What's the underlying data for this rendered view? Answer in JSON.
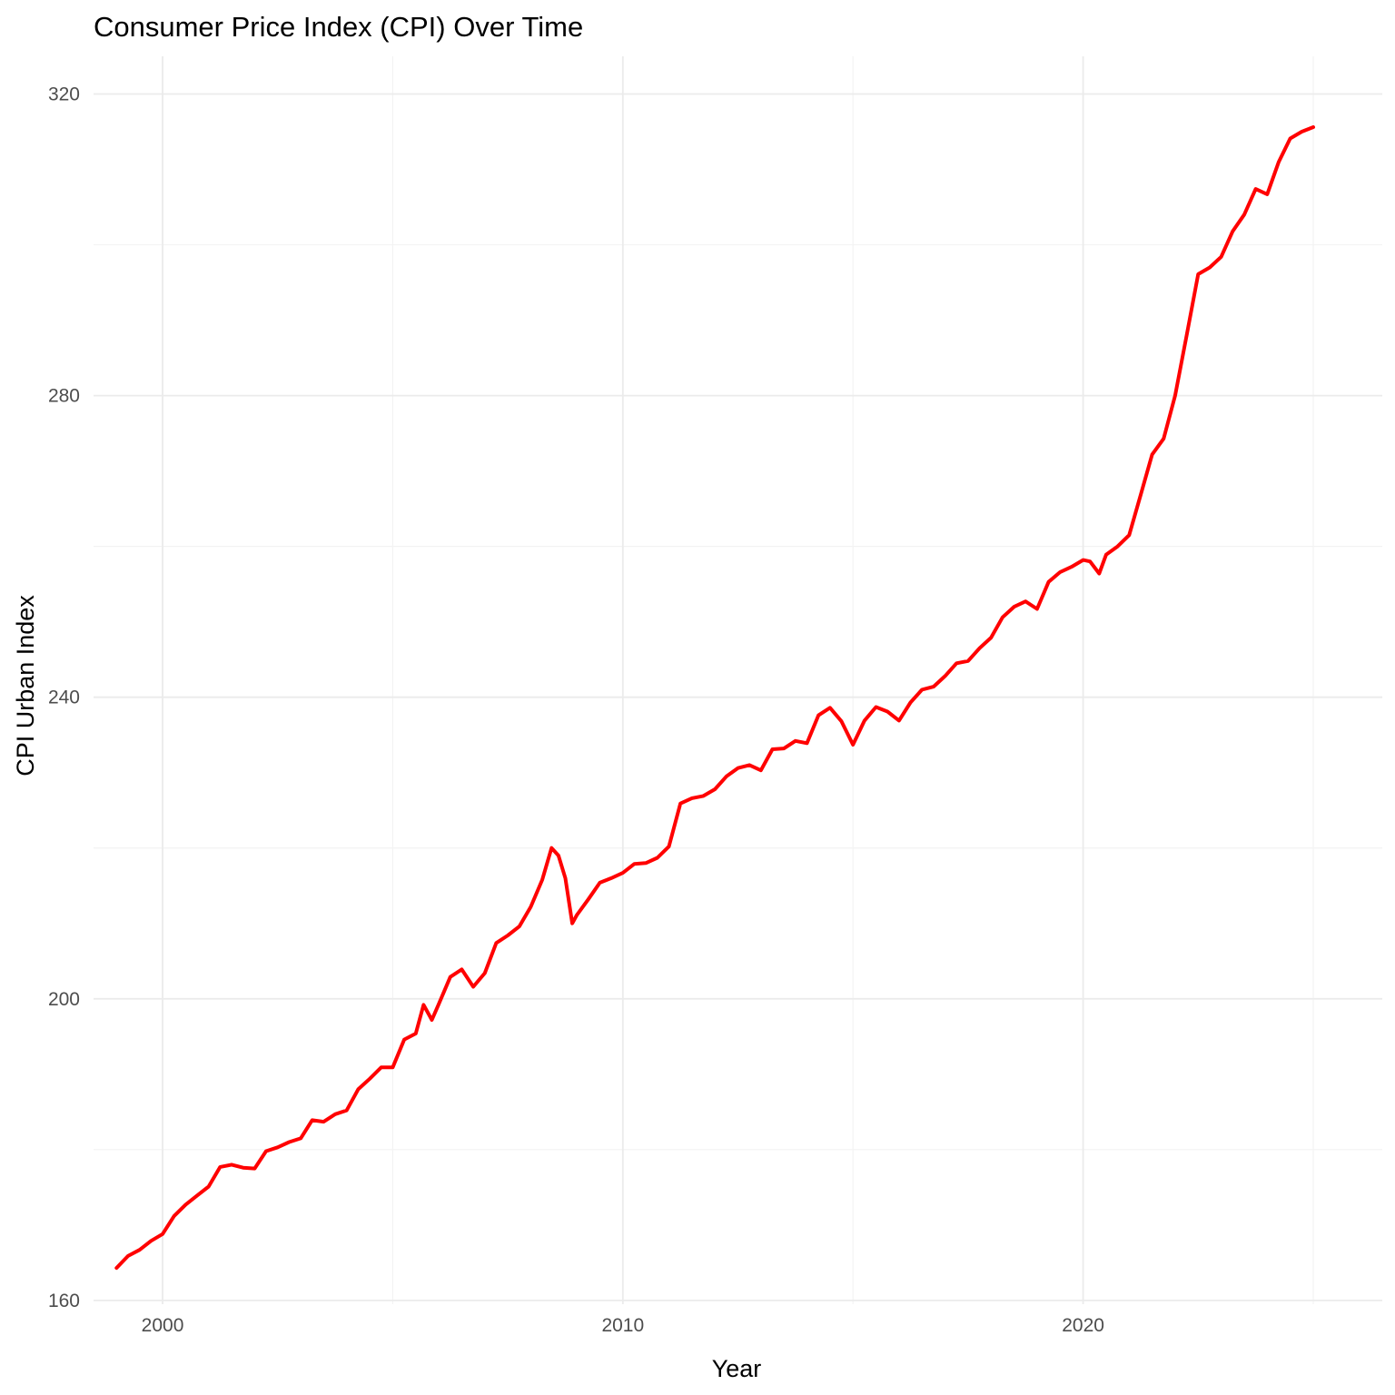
{
  "chart_data": {
    "type": "line",
    "title": "Consumer Price Index (CPI) Over Time",
    "xlabel": "Year",
    "ylabel": "CPI Urban Index",
    "xlim": [
      1998.5,
      2026.5
    ],
    "ylim": [
      159.5,
      325
    ],
    "x_ticks": [
      2000,
      2010,
      2020
    ],
    "y_ticks": [
      160,
      200,
      240,
      280,
      320
    ],
    "grid": true,
    "legend": "none",
    "series": [
      {
        "color": "#ff0000",
        "x": [
          1999.0,
          1999.25,
          1999.5,
          1999.75,
          2000.0,
          2000.25,
          2000.5,
          2000.75,
          2001.0,
          2001.25,
          2001.5,
          2001.75,
          2002.0,
          2002.25,
          2002.5,
          2002.75,
          2003.0,
          2003.25,
          2003.5,
          2003.75,
          2004.0,
          2004.25,
          2004.5,
          2004.75,
          2005.0,
          2005.25,
          2005.5,
          2005.67,
          2005.85,
          2006.0,
          2006.25,
          2006.5,
          2006.75,
          2007.0,
          2007.25,
          2007.5,
          2007.75,
          2008.0,
          2008.25,
          2008.45,
          2008.6,
          2008.75,
          2008.9,
          2009.0,
          2009.25,
          2009.5,
          2009.75,
          2010.0,
          2010.25,
          2010.5,
          2010.75,
          2011.0,
          2011.25,
          2011.5,
          2011.75,
          2012.0,
          2012.25,
          2012.5,
          2012.75,
          2013.0,
          2013.25,
          2013.5,
          2013.75,
          2014.0,
          2014.25,
          2014.5,
          2014.75,
          2015.0,
          2015.25,
          2015.5,
          2015.75,
          2016.0,
          2016.25,
          2016.5,
          2016.75,
          2017.0,
          2017.25,
          2017.5,
          2017.75,
          2018.0,
          2018.25,
          2018.5,
          2018.75,
          2019.0,
          2019.25,
          2019.5,
          2019.75,
          2020.0,
          2020.15,
          2020.35,
          2020.5,
          2020.75,
          2021.0,
          2021.25,
          2021.5,
          2021.75,
          2022.0,
          2022.25,
          2022.5,
          2022.75,
          2023.0,
          2023.25,
          2023.5,
          2023.75,
          2024.0,
          2024.25,
          2024.5,
          2024.75,
          2025.0
        ],
        "y": [
          164.3,
          165.9,
          166.7,
          167.9,
          168.8,
          171.2,
          172.7,
          173.9,
          175.1,
          177.7,
          178.0,
          177.6,
          177.5,
          179.8,
          180.3,
          181.0,
          181.5,
          183.9,
          183.7,
          184.7,
          185.2,
          188.0,
          189.4,
          190.9,
          190.9,
          194.6,
          195.4,
          199.2,
          197.2,
          199.3,
          202.9,
          203.9,
          201.6,
          203.4,
          207.4,
          208.4,
          209.6,
          212.2,
          215.8,
          220.0,
          219.0,
          216.0,
          210.0,
          211.1,
          213.2,
          215.4,
          216.0,
          216.7,
          217.9,
          218.0,
          218.7,
          220.2,
          225.9,
          226.6,
          226.9,
          227.8,
          229.5,
          230.6,
          231.0,
          230.3,
          233.1,
          233.2,
          234.2,
          233.9,
          237.6,
          238.6,
          236.8,
          233.7,
          236.9,
          238.7,
          238.1,
          236.9,
          239.3,
          241.0,
          241.4,
          242.8,
          244.5,
          244.8,
          246.5,
          247.9,
          250.6,
          252.0,
          252.7,
          251.7,
          255.3,
          256.6,
          257.3,
          258.2,
          258.0,
          256.4,
          258.9,
          260.0,
          261.5,
          266.8,
          272.2,
          274.3,
          280.0,
          288.0,
          296.1,
          297.0,
          298.4,
          301.8,
          304.0,
          307.4,
          306.7,
          311.0,
          314.1,
          315.0,
          315.6
        ]
      }
    ]
  }
}
